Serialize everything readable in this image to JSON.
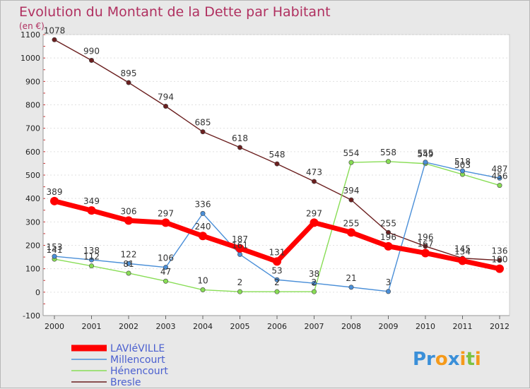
{
  "chart_data": {
    "type": "line",
    "title": "Evolution du Montant de la Dette par Habitant",
    "unit_label": "(en €)",
    "x": [
      "2000",
      "2001",
      "2002",
      "2003",
      "2004",
      "2005",
      "2006",
      "2007",
      "2008",
      "2009",
      "2010",
      "2011",
      "2012"
    ],
    "yticks": [
      -100,
      0,
      100,
      200,
      300,
      400,
      500,
      600,
      700,
      800,
      900,
      1000,
      1100
    ],
    "ylim": [
      -100,
      1100
    ],
    "grid": true,
    "series": [
      {
        "name": "Bresle",
        "color": "#6b1f1f",
        "values": [
          1078,
          990,
          895,
          794,
          685,
          618,
          548,
          473,
          394,
          255,
          196,
          145,
          136
        ]
      },
      {
        "name": "Hénencourt",
        "color": "#88dd55",
        "values": [
          141,
          112,
          81,
          47,
          10,
          2,
          2,
          2,
          554,
          558,
          549,
          503,
          456
        ]
      },
      {
        "name": "Millencourt",
        "color": "#4a8fd8",
        "values": [
          153,
          138,
          122,
          106,
          336,
          161,
          53,
          38,
          21,
          3,
          555,
          518,
          487
        ]
      },
      {
        "name": "LAVIéVILLE",
        "color": "#ff0000",
        "values": [
          389,
          349,
          306,
          297,
          240,
          187,
          131,
          297,
          255,
          196,
          167,
          134,
          100
        ]
      }
    ],
    "legend": [
      "LAVIéVILLE",
      "Millencourt",
      "Hénencourt",
      "Bresle"
    ],
    "legend_position": "bottom-left"
  },
  "logo": {
    "parts": [
      "Pr",
      "o",
      "x",
      "i",
      "t",
      "i"
    ],
    "colors": [
      "#3a8fd8",
      "#f59a1a",
      "#3a8fd8",
      "#f59a1a",
      "#7cc242",
      "#f59a1a"
    ]
  }
}
